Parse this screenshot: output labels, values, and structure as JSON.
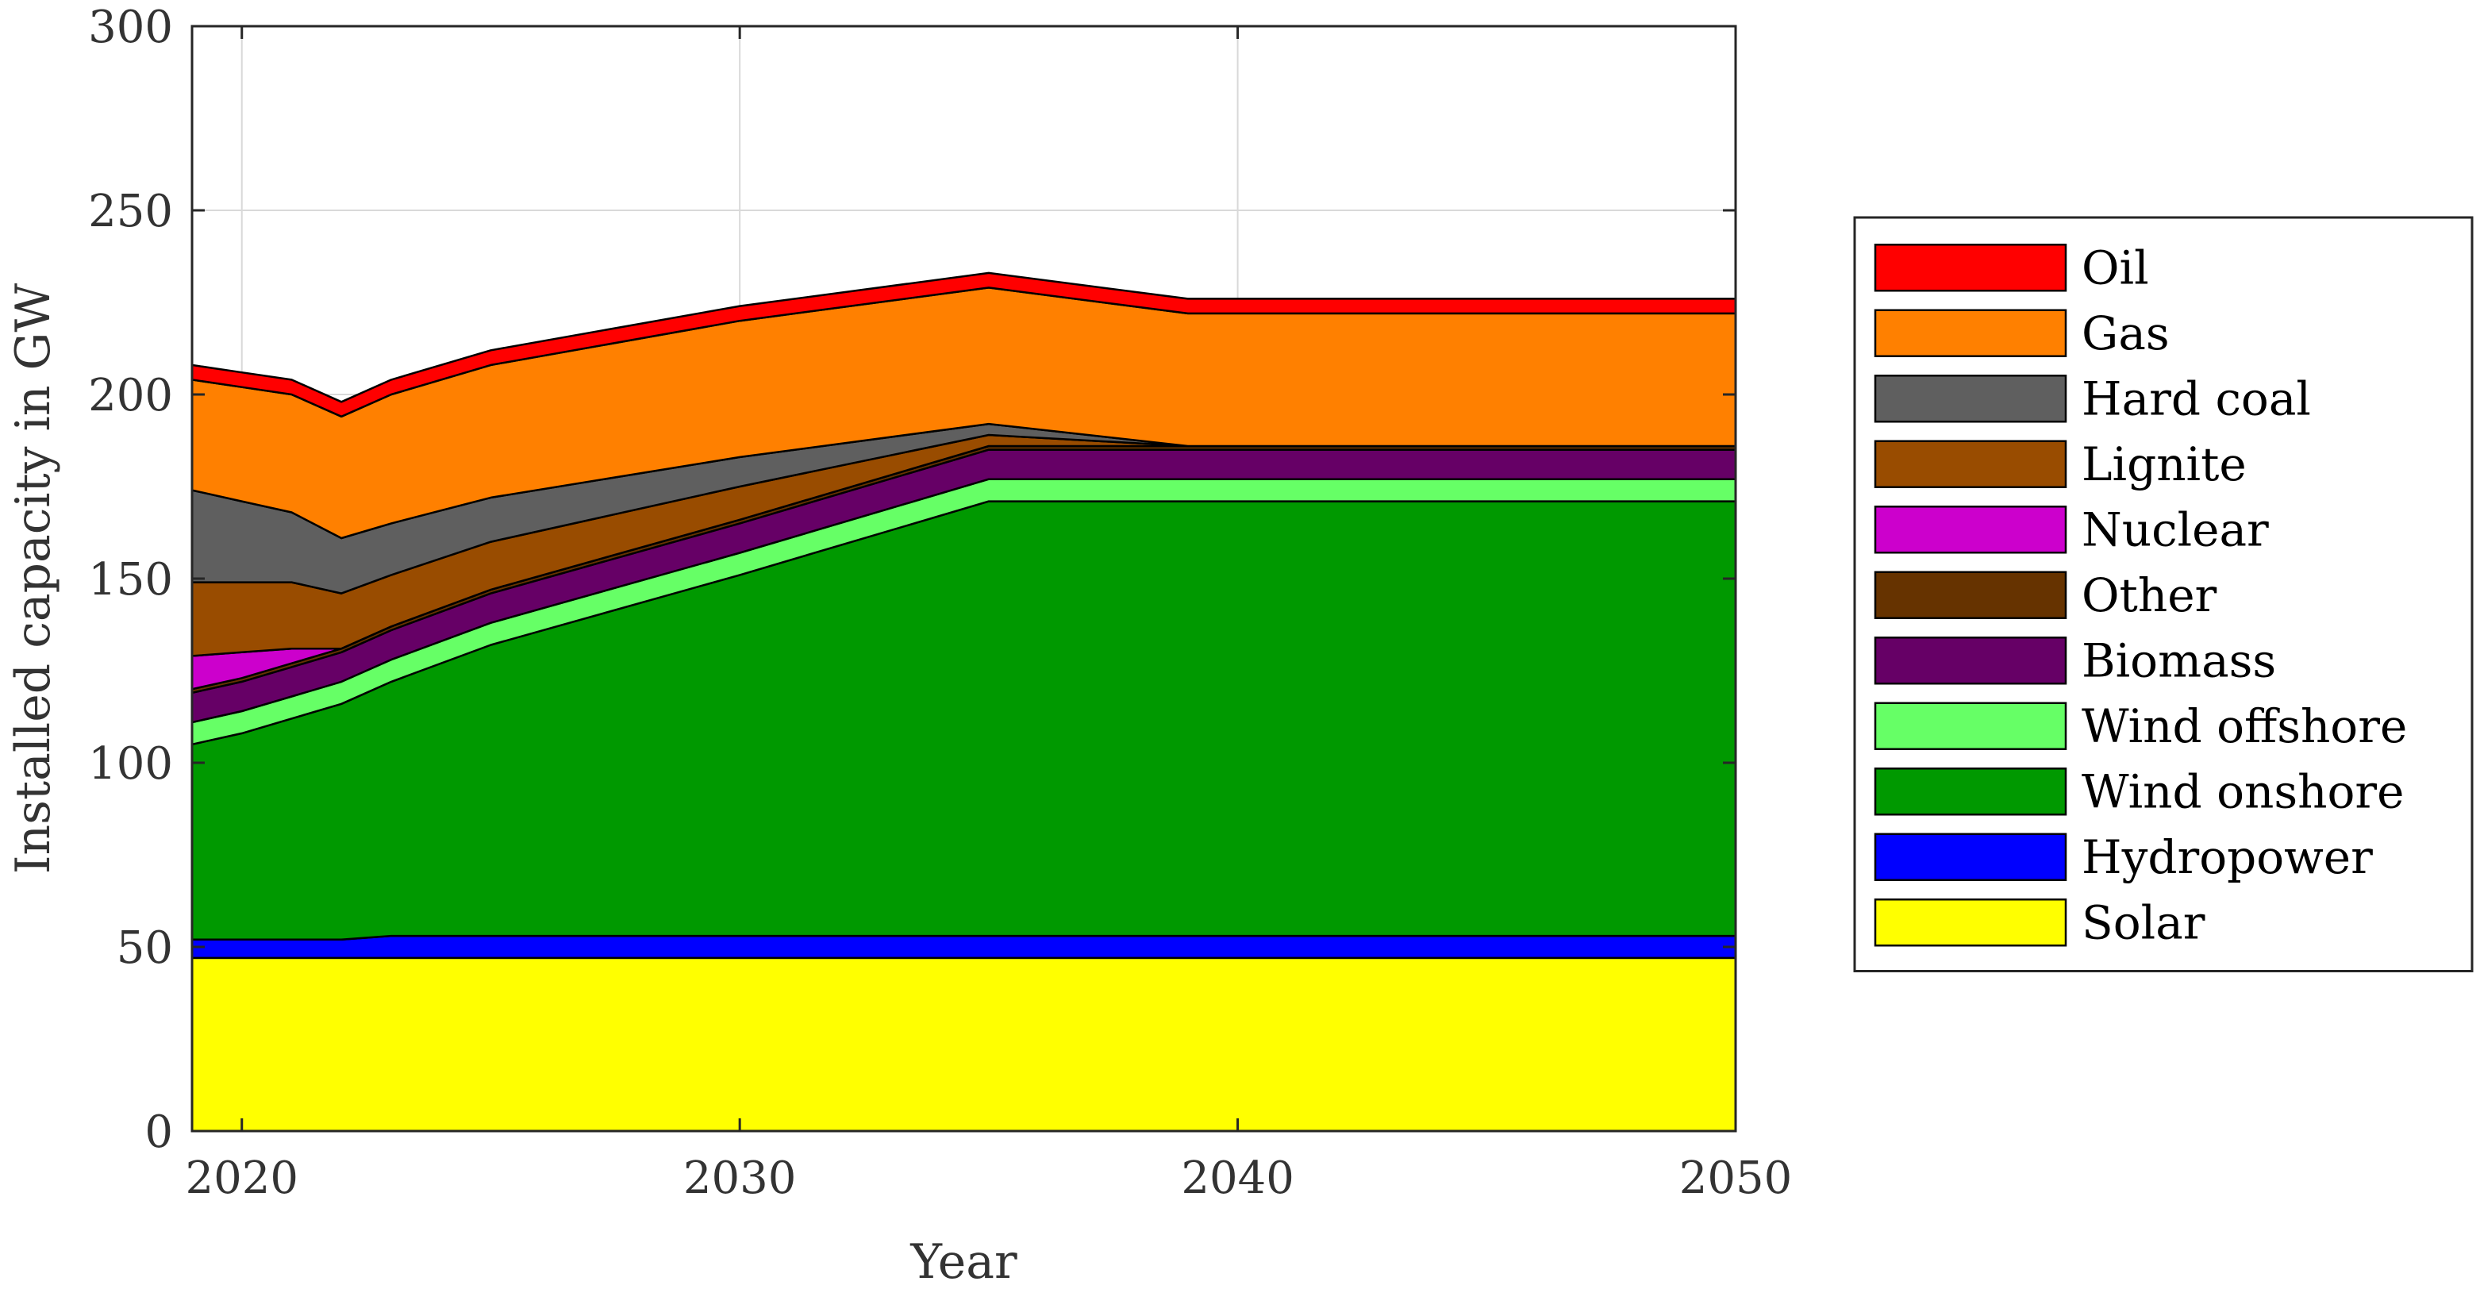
{
  "chart_data": {
    "type": "area",
    "stacked": true,
    "title": "",
    "xlabel": "Year",
    "ylabel": "Installed capacity in GW",
    "xlim": [
      2019,
      2050
    ],
    "ylim": [
      0,
      300
    ],
    "xticks": [
      2020,
      2030,
      2040,
      2050
    ],
    "yticks": [
      0,
      50,
      100,
      150,
      200,
      250,
      300
    ],
    "grid": true,
    "legend_position": "right",
    "x": [
      2019,
      2020,
      2021,
      2022,
      2023,
      2025,
      2030,
      2035,
      2039,
      2040,
      2050
    ],
    "series": [
      {
        "name": "Solar",
        "color": "#ffff00",
        "values": [
          47,
          47,
          47,
          47,
          47,
          47,
          47,
          47,
          47,
          47,
          47
        ]
      },
      {
        "name": "Hydropower",
        "color": "#0000ff",
        "values": [
          5,
          5,
          5,
          5,
          6,
          6,
          6,
          6,
          6,
          6,
          6
        ]
      },
      {
        "name": "Wind onshore",
        "color": "#009900",
        "values": [
          53,
          56,
          60,
          64,
          69,
          79,
          98,
          118,
          118,
          118,
          118
        ]
      },
      {
        "name": "Wind offshore",
        "color": "#66ff66",
        "values": [
          6,
          6,
          6,
          6,
          6,
          6,
          6,
          6,
          6,
          6,
          6
        ]
      },
      {
        "name": "Biomass",
        "color": "#660066",
        "values": [
          8,
          8,
          8,
          8,
          8,
          8,
          8,
          8,
          8,
          8,
          8
        ]
      },
      {
        "name": "Other",
        "color": "#663300",
        "values": [
          1,
          1,
          1,
          1,
          1,
          1,
          1,
          1,
          1,
          1,
          1
        ]
      },
      {
        "name": "Nuclear",
        "color": "#cc00cc",
        "values": [
          9,
          7,
          4,
          0,
          0,
          0,
          0,
          0,
          0,
          0,
          0
        ]
      },
      {
        "name": "Lignite",
        "color": "#994c00",
        "values": [
          20,
          19,
          18,
          15,
          14,
          13,
          9,
          3,
          0,
          0,
          0
        ]
      },
      {
        "name": "Hard coal",
        "color": "#5f5f5f",
        "values": [
          25,
          22,
          19,
          15,
          14,
          12,
          8,
          3,
          0,
          0,
          0
        ]
      },
      {
        "name": "Gas",
        "color": "#ff8000",
        "values": [
          30,
          31,
          32,
          33,
          35,
          36,
          37,
          37,
          36,
          36,
          36
        ]
      },
      {
        "name": "Oil",
        "color": "#ff0000",
        "values": [
          4,
          4,
          4,
          4,
          4,
          4,
          4,
          4,
          4,
          4,
          4
        ]
      }
    ],
    "legend_order": [
      "Oil",
      "Gas",
      "Hard coal",
      "Lignite",
      "Nuclear",
      "Other",
      "Biomass",
      "Wind offshore",
      "Wind onshore",
      "Hydropower",
      "Solar"
    ]
  }
}
